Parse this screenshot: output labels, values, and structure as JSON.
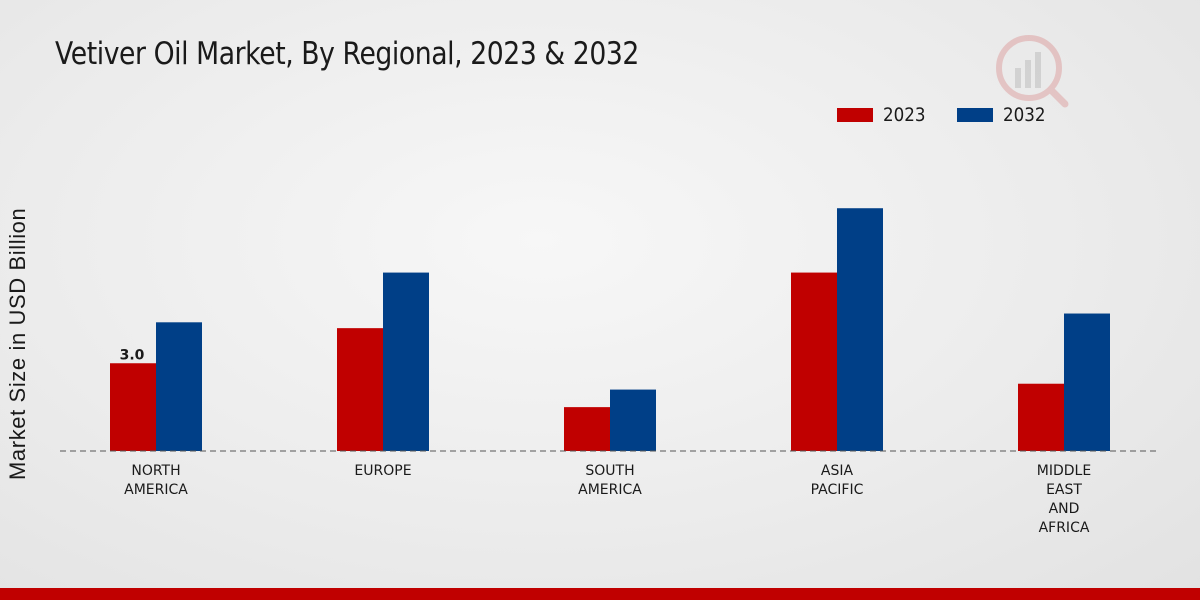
{
  "chart_data": {
    "type": "bar",
    "title": "Vetiver Oil Market, By Regional, 2023 & 2032",
    "xlabel": "",
    "ylabel": "Market Size in USD Billion",
    "categories": [
      [
        "NORTH",
        "AMERICA"
      ],
      [
        "EUROPE"
      ],
      [
        "SOUTH",
        "AMERICA"
      ],
      [
        "ASIA",
        "PACIFIC"
      ],
      [
        "MIDDLE",
        "EAST",
        "AND",
        "AFRICA"
      ]
    ],
    "series": [
      {
        "name": "2023",
        "color": "#c00000",
        "values": [
          3.0,
          4.2,
          1.5,
          6.1,
          2.3
        ]
      },
      {
        "name": "2032",
        "color": "#003f87",
        "values": [
          4.4,
          6.1,
          2.1,
          8.3,
          4.7
        ]
      }
    ],
    "data_labels": [
      {
        "series": 0,
        "index": 0,
        "text": "3.0"
      }
    ],
    "ylim": [
      0,
      12
    ],
    "grid": false,
    "legend": "top-right"
  }
}
